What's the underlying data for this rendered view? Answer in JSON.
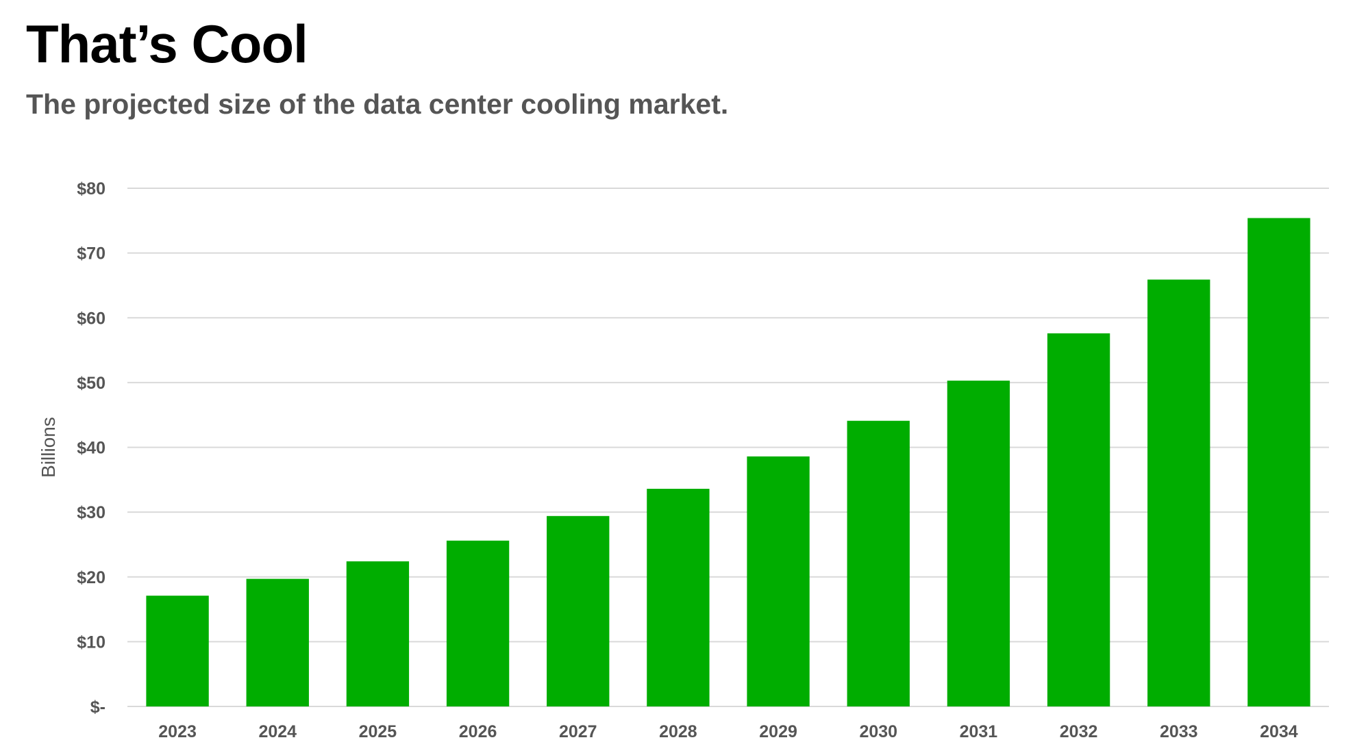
{
  "header": {
    "title": "That’s Cool",
    "subtitle": "The projected size of the data center cooling market."
  },
  "colors": {
    "bar": "#00ad00",
    "grid": "#d9d9d9",
    "axis_text": "#555555"
  },
  "chart_data": {
    "type": "bar",
    "title": "That’s Cool",
    "subtitle": "The projected size of the data center cooling market.",
    "xlabel": "",
    "ylabel": "Billions",
    "categories": [
      "2023",
      "2024",
      "2025",
      "2026",
      "2027",
      "2028",
      "2029",
      "2030",
      "2031",
      "2032",
      "2033",
      "2034"
    ],
    "values": [
      17.1,
      19.7,
      22.4,
      25.6,
      29.4,
      33.6,
      38.6,
      44.1,
      50.3,
      57.6,
      65.9,
      75.4
    ],
    "ylim": [
      0,
      80
    ],
    "yticks": [
      0,
      10,
      20,
      30,
      40,
      50,
      60,
      70,
      80
    ],
    "ytick_labels": [
      "$-",
      "$10",
      "$20",
      "$30",
      "$40",
      "$50",
      "$60",
      "$70",
      "$80"
    ],
    "grid": true,
    "legend": "none"
  }
}
